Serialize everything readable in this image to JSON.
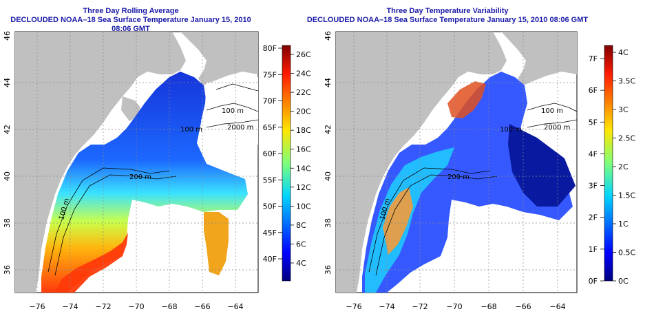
{
  "left_panel": {
    "title_line1": "Three Day Rolling Average",
    "title_line2": "DECLOUDED NOAA–18 Sea Surface Temperature January 15, 2010 08:06 GMT",
    "colorbar_f": [
      "80F",
      "75F",
      "70F",
      "65F",
      "60F",
      "55F",
      "50F",
      "45F",
      "40F"
    ],
    "colorbar_c": [
      "26C",
      "24C",
      "22C",
      "20C",
      "18C",
      "16C",
      "14C",
      "12C",
      "10C",
      "8C",
      "6C",
      "4C"
    ]
  },
  "right_panel": {
    "title_line1": "Three Day Temperature Variability",
    "title_line2": "DECLOUDED NOAA–18 Sea Surface Temperature January 15, 2010 08:06 GMT",
    "colorbar_f": [
      "7F",
      "6F",
      "5F",
      "4F",
      "3F",
      "2F",
      "1F",
      "0F"
    ],
    "colorbar_c": [
      "4C",
      "3.5C",
      "3C",
      "2.5C",
      "2C",
      "1.5C",
      "1C",
      "0.5C",
      "0C"
    ]
  },
  "x_ticks": [
    "−76",
    "−74",
    "−72",
    "−70",
    "−68",
    "−66",
    "−64"
  ],
  "y_ticks": [
    "36",
    "38",
    "40",
    "42",
    "44",
    "46"
  ],
  "contour_labels": [
    "100 m",
    "2000 m",
    "100 m",
    "200 m",
    "100 m"
  ],
  "colors": {
    "land": "#c0c0c0",
    "title": "#1a1aa8"
  }
}
